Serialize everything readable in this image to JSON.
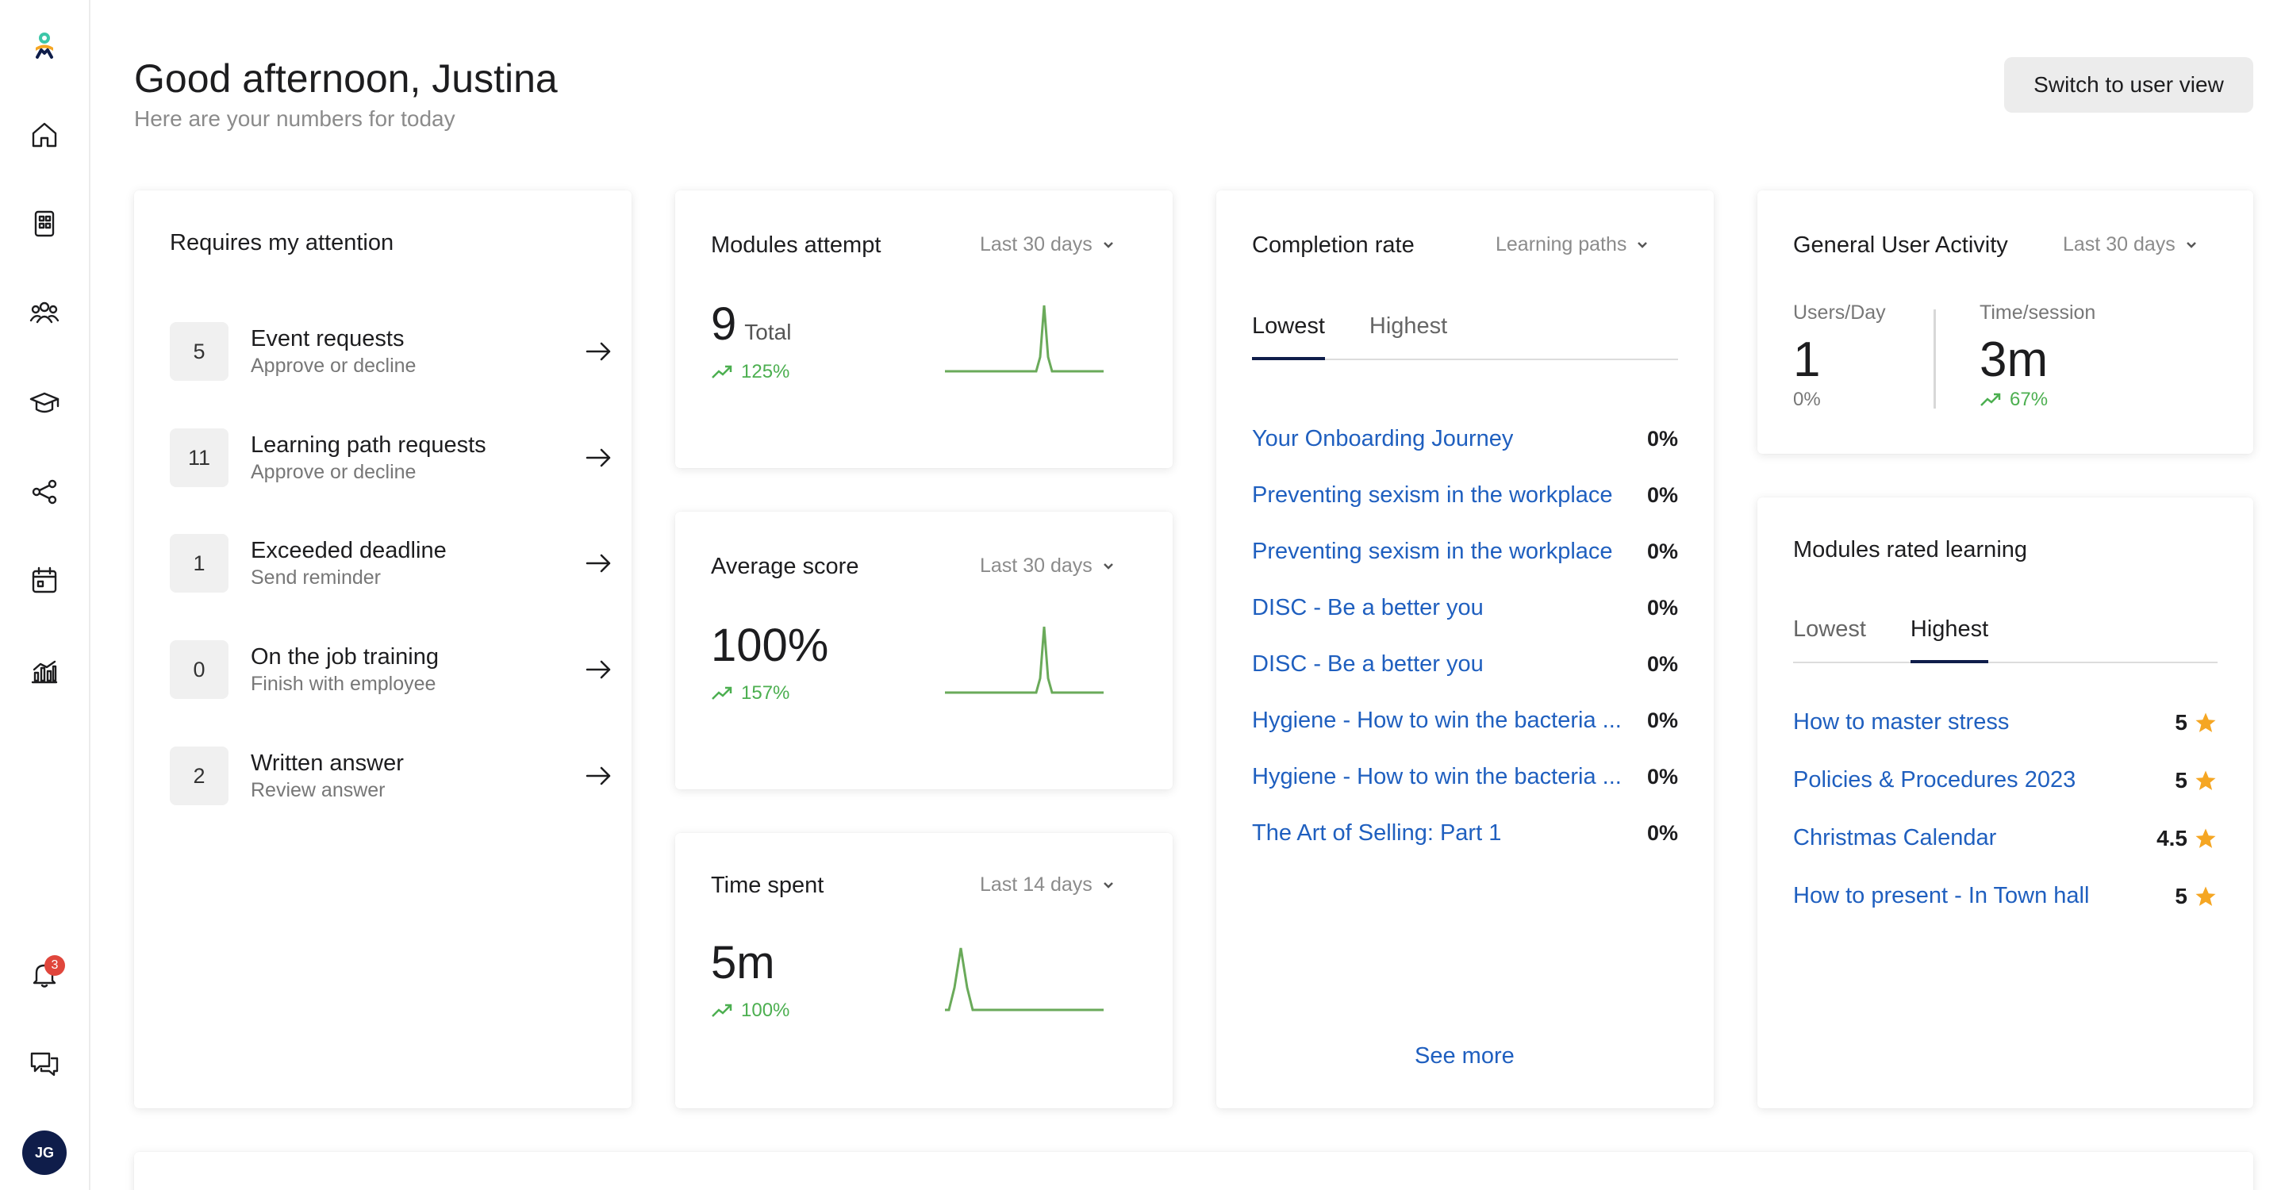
{
  "header": {
    "greeting": "Good afternoon, Justina",
    "subtitle": "Here are your numbers for today",
    "switch_label": "Switch to user view"
  },
  "sidebar": {
    "notification_count": "3",
    "avatar_initials": "JG"
  },
  "attention": {
    "title": "Requires my attention",
    "items": [
      {
        "count": "5",
        "label": "Event requests",
        "sub": "Approve or decline"
      },
      {
        "count": "11",
        "label": "Learning path requests",
        "sub": "Approve or decline"
      },
      {
        "count": "1",
        "label": "Exceeded deadline",
        "sub": "Send reminder"
      },
      {
        "count": "0",
        "label": "On the job training",
        "sub": "Finish with employee"
      },
      {
        "count": "2",
        "label": "Written answer",
        "sub": "Review answer"
      }
    ]
  },
  "modules_attempt": {
    "title": "Modules attempt",
    "period": "Last 30 days",
    "value": "9",
    "unit": "Total",
    "trend": "125%"
  },
  "average_score": {
    "title": "Average score",
    "period": "Last 30 days",
    "value": "100%",
    "trend": "157%"
  },
  "time_spent": {
    "title": "Time spent",
    "period": "Last 14 days",
    "value": "5m",
    "trend": "100%"
  },
  "completion": {
    "title": "Completion rate",
    "filter": "Learning paths",
    "tabs": [
      "Lowest",
      "Highest"
    ],
    "items": [
      {
        "name": "Your Onboarding Journey",
        "pct": "0%"
      },
      {
        "name": "Preventing sexism in the workplace",
        "pct": "0%"
      },
      {
        "name": "Preventing sexism in the workplace",
        "pct": "0%"
      },
      {
        "name": "DISC - Be a better you",
        "pct": "0%"
      },
      {
        "name": "DISC - Be a better you",
        "pct": "0%"
      },
      {
        "name": "Hygiene - How to win the bacteria ...",
        "pct": "0%"
      },
      {
        "name": "Hygiene - How to win the bacteria ...",
        "pct": "0%"
      },
      {
        "name": "The Art of Selling: Part 1",
        "pct": "0%"
      }
    ],
    "see_more": "See more"
  },
  "activity": {
    "title": "General User Activity",
    "period": "Last 30 days",
    "users_label": "Users/Day",
    "users_value": "1",
    "users_trend": "0%",
    "time_label": "Time/session",
    "time_value": "3m",
    "time_trend": "67%"
  },
  "rated": {
    "title": "Modules rated learning",
    "tabs": [
      "Lowest",
      "Highest"
    ],
    "items": [
      {
        "name": "How to master stress",
        "rating": "5"
      },
      {
        "name": "Policies & Procedures 2023",
        "rating": "5"
      },
      {
        "name": "Christmas Calendar",
        "rating": "4.5"
      },
      {
        "name": "How to present - In Town hall",
        "rating": "5"
      }
    ]
  },
  "colors": {
    "accent": "#0f1d4a",
    "link": "#1f5fbf",
    "positive": "#4caf50",
    "star": "#f5a623"
  }
}
